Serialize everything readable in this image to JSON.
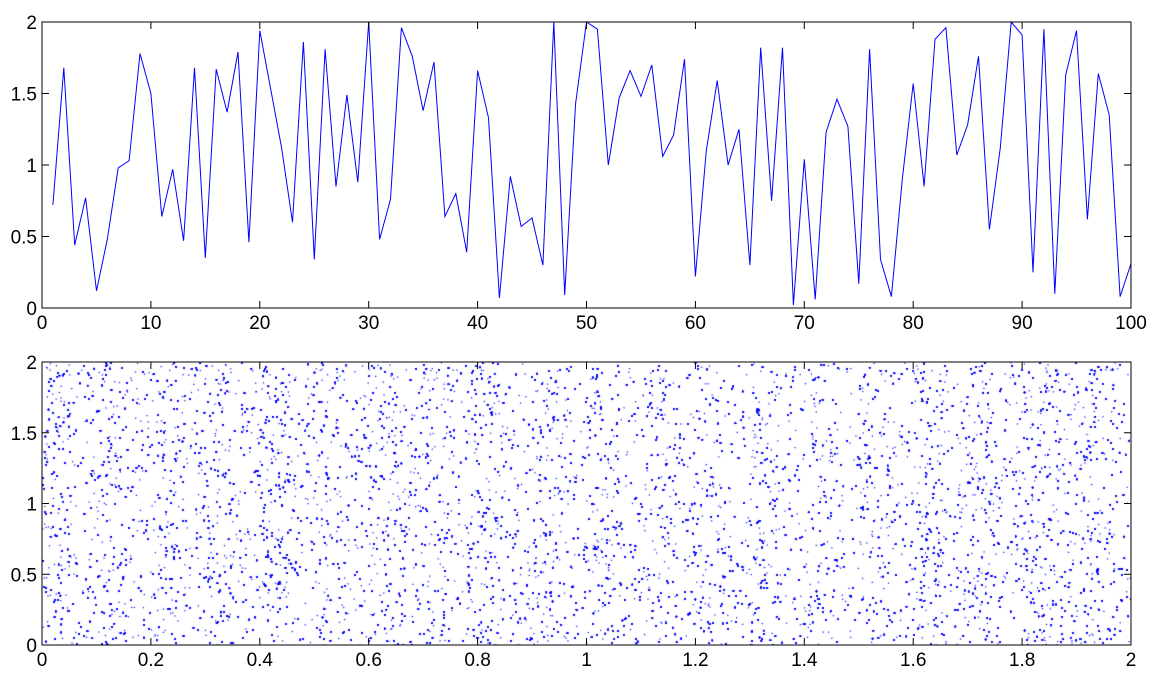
{
  "figure": {
    "background": "#ffffff"
  },
  "chart_data": [
    {
      "type": "line",
      "title": "",
      "xlabel": "",
      "ylabel": "",
      "xlim": [
        0,
        100
      ],
      "ylim": [
        0,
        2
      ],
      "xticks": [
        0,
        10,
        20,
        30,
        40,
        50,
        60,
        70,
        80,
        90,
        100
      ],
      "xtick_labels": [
        "0",
        "10",
        "20",
        "30",
        "40",
        "50",
        "60",
        "70",
        "80",
        "90",
        "100"
      ],
      "yticks": [
        0,
        0.5,
        1,
        1.5,
        2
      ],
      "ytick_labels": [
        "0",
        "0.5",
        "1",
        "1.5",
        "2"
      ],
      "grid": false,
      "color": "#0000ff",
      "series": [
        {
          "x": [
            1,
            2,
            3,
            4,
            5,
            6,
            7,
            8,
            9,
            10,
            11,
            12,
            13,
            14,
            15,
            16,
            17,
            18,
            19,
            20,
            21,
            22,
            23,
            24,
            25,
            26,
            27,
            28,
            29,
            30,
            31,
            32,
            33,
            34,
            35,
            36,
            37,
            38,
            39,
            40,
            41,
            42,
            43,
            44,
            45,
            46,
            47,
            48,
            49,
            50,
            51,
            52,
            53,
            54,
            55,
            56,
            57,
            58,
            59,
            60,
            61,
            62,
            63,
            64,
            65,
            66,
            67,
            68,
            69,
            70,
            71,
            72,
            73,
            74,
            75,
            76,
            77,
            78,
            79,
            80,
            81,
            82,
            83,
            84,
            85,
            86,
            87,
            88,
            89,
            90,
            91,
            92,
            93,
            94,
            95,
            96,
            97,
            98,
            99,
            100
          ],
          "y": [
            0.72,
            1.68,
            0.44,
            0.77,
            0.12,
            0.48,
            0.98,
            1.03,
            1.78,
            1.5,
            0.64,
            0.97,
            0.47,
            1.68,
            0.35,
            1.67,
            1.37,
            1.79,
            0.46,
            1.94,
            1.53,
            1.12,
            0.6,
            1.86,
            0.34,
            1.81,
            0.85,
            1.49,
            0.88,
            2.0,
            0.48,
            0.76,
            1.96,
            1.76,
            1.38,
            1.72,
            0.64,
            0.8,
            0.39,
            1.66,
            1.33,
            0.07,
            0.92,
            0.57,
            0.63,
            0.3,
            2.0,
            0.09,
            1.43,
            2.0,
            1.95,
            1.0,
            1.47,
            1.66,
            1.48,
            1.7,
            1.06,
            1.21,
            1.74,
            0.22,
            1.1,
            1.59,
            1.0,
            1.25,
            0.3,
            1.82,
            0.75,
            1.82,
            0.02,
            1.04,
            0.06,
            1.23,
            1.46,
            1.27,
            0.17,
            1.81,
            0.34,
            0.08,
            0.9,
            1.57,
            0.85,
            1.88,
            1.96,
            1.07,
            1.28,
            1.76,
            0.55,
            1.12,
            2.0,
            1.91,
            0.25,
            1.95,
            0.1,
            1.63,
            1.94,
            0.62,
            1.64,
            1.35,
            0.08,
            0.31
          ]
        }
      ]
    },
    {
      "type": "scatter",
      "title": "",
      "xlabel": "",
      "ylabel": "",
      "xlim": [
        0,
        2
      ],
      "ylim": [
        0,
        2
      ],
      "xticks": [
        0,
        0.2,
        0.4,
        0.6,
        0.8,
        1,
        1.2,
        1.4,
        1.6,
        1.8,
        2
      ],
      "xtick_labels": [
        "0",
        "0.2",
        "0.4",
        "0.6",
        "0.8",
        "1",
        "1.2",
        "1.4",
        "1.6",
        "1.8",
        "2"
      ],
      "yticks": [
        0,
        0.5,
        1,
        1.5,
        2
      ],
      "ytick_labels": [
        "0",
        "0.5",
        "1",
        "1.5",
        "2"
      ],
      "grid": false,
      "color": "#0000ff",
      "marker": "point",
      "distribution": "dense uniform point cloud filling [0,2]x[0,2] with faint vertical banding",
      "approx_point_count": 120000
    }
  ]
}
